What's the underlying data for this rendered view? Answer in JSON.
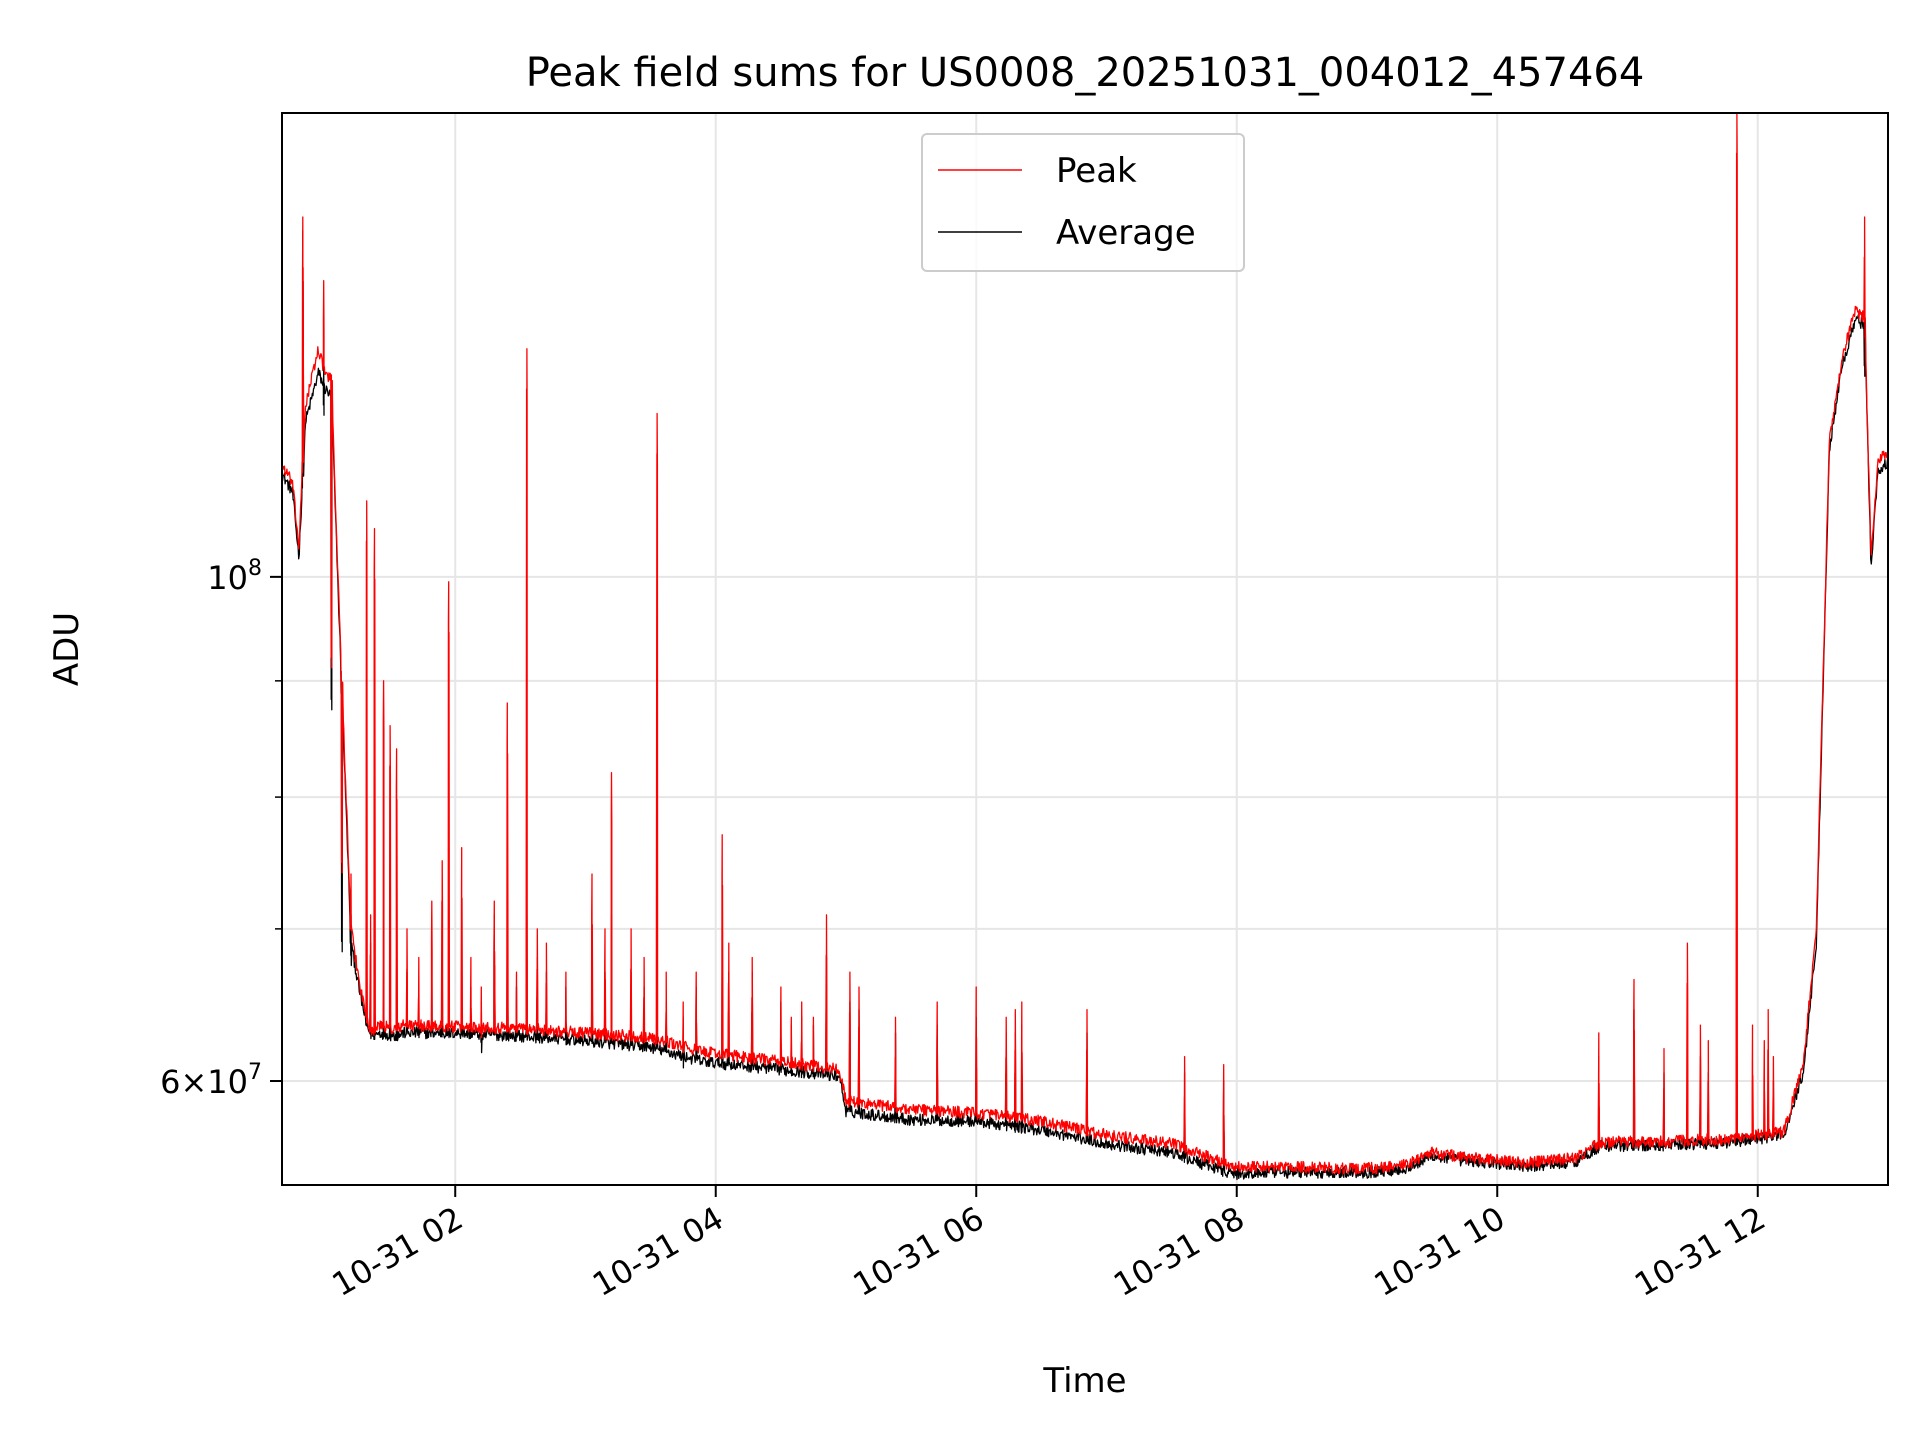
{
  "chart_data": {
    "type": "line",
    "title": "Peak field sums for US0008_20251031_004012_457464",
    "xlabel": "Time",
    "ylabel": "ADU",
    "yscale": "log",
    "xlim_hours": [
      0.67,
      13.0
    ],
    "ylim": [
      54000000,
      160000000
    ],
    "grid": true,
    "legend": {
      "location": "upper center",
      "entries": [
        "Peak",
        "Average"
      ]
    },
    "x_ticks": [
      {
        "hour": 2,
        "label": "10-31 02"
      },
      {
        "hour": 4,
        "label": "10-31 04"
      },
      {
        "hour": 6,
        "label": "10-31 06"
      },
      {
        "hour": 8,
        "label": "10-31 08"
      },
      {
        "hour": 10,
        "label": "10-31 10"
      },
      {
        "hour": 12,
        "label": "10-31 12"
      }
    ],
    "y_major_ticks": [
      {
        "value": 60000000,
        "mantissa": "6",
        "base": "10",
        "exponent": "7"
      },
      {
        "value": 100000000,
        "mantissa": "",
        "base": "10",
        "exponent": "8"
      }
    ],
    "y_minor_ticks": [
      70000000,
      80000000,
      90000000
    ],
    "series": [
      {
        "name": "Peak",
        "color": "#ff0000",
        "baseline": {
          "hours": [
            0.67,
            0.75,
            0.8,
            0.85,
            0.95,
            1.0,
            1.05,
            1.1,
            1.2,
            1.27,
            1.32,
            1.36,
            1.42,
            1.55,
            1.6,
            2.0,
            2.5,
            3.0,
            3.5,
            3.9,
            4.5,
            4.95,
            5.0,
            5.5,
            6.0,
            6.5,
            7.0,
            7.5,
            7.8,
            8.0,
            8.3,
            9.0,
            9.3,
            9.5,
            9.8,
            10.0,
            10.2,
            10.6,
            10.8,
            11.2,
            11.8,
            12.2,
            12.35,
            12.45,
            12.55,
            12.65,
            12.75,
            12.82,
            12.87,
            12.92,
            12.96,
            13.0
          ],
          "values": [
            112000000,
            110000000,
            103000000,
            119000000,
            126000000,
            123000000,
            122000000,
            100000000,
            70000000,
            66000000,
            64000000,
            63000000,
            63500000,
            63200000,
            63500000,
            63400000,
            63300000,
            63000000,
            62700000,
            61800000,
            61200000,
            60700000,
            58800000,
            58300000,
            58100000,
            57600000,
            56800000,
            56300000,
            55500000,
            55000000,
            55000000,
            54900000,
            55100000,
            55800000,
            55500000,
            55400000,
            55200000,
            55500000,
            56400000,
            56400000,
            56600000,
            57000000,
            61000000,
            70000000,
            115000000,
            125000000,
            131000000,
            130000000,
            102000000,
            112000000,
            113000000,
            113000000
          ]
        },
        "spikes": [
          [
            0.83,
            144000000
          ],
          [
            0.99,
            135000000
          ],
          [
            1.05,
            96000000
          ],
          [
            1.13,
            78000000
          ],
          [
            1.2,
            74000000
          ],
          [
            1.32,
            108000000
          ],
          [
            1.35,
            71000000
          ],
          [
            1.38,
            105000000
          ],
          [
            1.45,
            90000000
          ],
          [
            1.5,
            86000000
          ],
          [
            1.55,
            84000000
          ],
          [
            1.63,
            70000000
          ],
          [
            1.72,
            68000000
          ],
          [
            1.82,
            72000000
          ],
          [
            1.9,
            75000000
          ],
          [
            1.95,
            99500000
          ],
          [
            2.05,
            76000000
          ],
          [
            2.12,
            68000000
          ],
          [
            2.2,
            66000000
          ],
          [
            2.3,
            72000000
          ],
          [
            2.4,
            88000000
          ],
          [
            2.47,
            67000000
          ],
          [
            2.55,
            126000000
          ],
          [
            2.63,
            70000000
          ],
          [
            2.7,
            69000000
          ],
          [
            2.85,
            67000000
          ],
          [
            3.05,
            74000000
          ],
          [
            3.15,
            70000000
          ],
          [
            3.2,
            82000000
          ],
          [
            3.35,
            70000000
          ],
          [
            3.45,
            68000000
          ],
          [
            3.55,
            118000000
          ],
          [
            3.62,
            67000000
          ],
          [
            3.75,
            65000000
          ],
          [
            3.85,
            67000000
          ],
          [
            4.05,
            77000000
          ],
          [
            4.1,
            69000000
          ],
          [
            4.28,
            68000000
          ],
          [
            4.5,
            66000000
          ],
          [
            4.58,
            64000000
          ],
          [
            4.66,
            65000000
          ],
          [
            4.75,
            64000000
          ],
          [
            4.85,
            71000000
          ],
          [
            5.03,
            67000000
          ],
          [
            5.1,
            66000000
          ],
          [
            5.38,
            64000000
          ],
          [
            5.7,
            65000000
          ],
          [
            6.0,
            66000000
          ],
          [
            6.23,
            64000000
          ],
          [
            6.3,
            64500000
          ],
          [
            6.35,
            65000000
          ],
          [
            6.85,
            64500000
          ],
          [
            7.6,
            61500000
          ],
          [
            7.9,
            61000000
          ],
          [
            10.78,
            63000000
          ],
          [
            11.05,
            66500000
          ],
          [
            11.28,
            62000000
          ],
          [
            11.46,
            69000000
          ],
          [
            11.56,
            63500000
          ],
          [
            11.62,
            62500000
          ],
          [
            11.84,
            160000000
          ],
          [
            11.96,
            63500000
          ],
          [
            12.05,
            62500000
          ],
          [
            12.08,
            64500000
          ],
          [
            12.12,
            61500000
          ],
          [
            12.82,
            144000000
          ]
        ]
      },
      {
        "name": "Average",
        "color": "#000000",
        "baseline": {
          "hours": [
            0.67,
            0.75,
            0.8,
            0.85,
            0.95,
            1.0,
            1.05,
            1.1,
            1.2,
            1.27,
            1.32,
            1.36,
            1.42,
            1.55,
            1.6,
            2.0,
            2.5,
            3.0,
            3.5,
            3.9,
            4.5,
            4.95,
            5.0,
            5.5,
            6.0,
            6.5,
            7.0,
            7.5,
            7.8,
            8.0,
            8.3,
            9.0,
            9.3,
            9.5,
            9.8,
            10.0,
            10.2,
            10.6,
            10.8,
            11.2,
            11.8,
            12.2,
            12.35,
            12.45,
            12.55,
            12.65,
            12.75,
            12.82,
            12.87,
            12.92,
            12.96,
            13.0
          ],
          "values": [
            111000000,
            109000000,
            102000000,
            117000000,
            123000000,
            121000000,
            120000000,
            99000000,
            69000000,
            65500000,
            63500000,
            62800000,
            63000000,
            62800000,
            63000000,
            63000000,
            62800000,
            62500000,
            62100000,
            61200000,
            60700000,
            60300000,
            58200000,
            57700000,
            57600000,
            57100000,
            56300000,
            55800000,
            55000000,
            54600000,
            54700000,
            54700000,
            54900000,
            55600000,
            55300000,
            55200000,
            55000000,
            55300000,
            56200000,
            56200000,
            56400000,
            56800000,
            60500000,
            69000000,
            114000000,
            124000000,
            130000000,
            129000000,
            101000000,
            111000000,
            112000000,
            112000000
          ]
        },
        "spikes": [
          [
            0.83,
            142000000
          ],
          [
            0.99,
            124000000
          ],
          [
            1.05,
            92000000
          ],
          [
            1.13,
            72000000
          ],
          [
            1.2,
            71000000
          ],
          [
            1.32,
            70000000
          ],
          [
            1.35,
            69000000
          ],
          [
            1.38,
            68000000
          ],
          [
            1.45,
            67000000
          ],
          [
            1.5,
            66000000
          ],
          [
            1.55,
            68000000
          ],
          [
            1.63,
            67000000
          ],
          [
            1.72,
            66000000
          ],
          [
            1.82,
            67000000
          ],
          [
            1.9,
            68000000
          ],
          [
            1.95,
            66000000
          ],
          [
            2.05,
            68000000
          ],
          [
            2.12,
            66000000
          ],
          [
            2.2,
            65000000
          ],
          [
            2.3,
            71000000
          ],
          [
            2.4,
            70000000
          ],
          [
            2.47,
            66000000
          ],
          [
            2.55,
            71000000
          ],
          [
            2.63,
            68000000
          ],
          [
            2.7,
            67000000
          ],
          [
            2.85,
            66000000
          ],
          [
            3.05,
            68000000
          ],
          [
            3.15,
            67000000
          ],
          [
            3.2,
            71000000
          ],
          [
            3.35,
            67000000
          ],
          [
            3.45,
            66000000
          ],
          [
            3.55,
            66000000
          ],
          [
            3.62,
            65000000
          ],
          [
            3.75,
            64000000
          ],
          [
            3.85,
            66000000
          ],
          [
            4.05,
            68000000
          ],
          [
            4.1,
            67000000
          ],
          [
            4.28,
            67000000
          ],
          [
            4.5,
            65000000
          ],
          [
            4.58,
            63500000
          ],
          [
            4.66,
            64000000
          ],
          [
            4.75,
            63500000
          ],
          [
            4.85,
            68000000
          ],
          [
            5.03,
            65000000
          ],
          [
            5.1,
            64500000
          ],
          [
            5.38,
            63000000
          ],
          [
            5.7,
            63500000
          ],
          [
            6.0,
            64000000
          ],
          [
            6.23,
            63000000
          ],
          [
            6.3,
            63000000
          ],
          [
            6.35,
            63500000
          ],
          [
            6.85,
            63000000
          ],
          [
            7.6,
            60500000
          ],
          [
            7.9,
            60000000
          ],
          [
            10.78,
            61500000
          ],
          [
            11.05,
            64500000
          ],
          [
            11.28,
            60500000
          ],
          [
            11.46,
            61000000
          ],
          [
            11.56,
            61500000
          ],
          [
            11.62,
            60500000
          ],
          [
            11.84,
            62000000
          ],
          [
            11.96,
            60000000
          ],
          [
            12.05,
            59500000
          ],
          [
            12.08,
            61000000
          ],
          [
            12.12,
            60000000
          ],
          [
            12.82,
            129000000
          ]
        ]
      }
    ]
  }
}
